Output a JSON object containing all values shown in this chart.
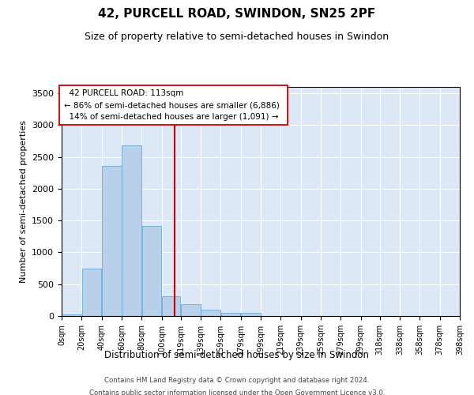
{
  "title": "42, PURCELL ROAD, SWINDON, SN25 2PF",
  "subtitle": "Size of property relative to semi-detached houses in Swindon",
  "xlabel": "Distribution of semi-detached houses by size in Swindon",
  "ylabel": "Number of semi-detached properties",
  "footer_line1": "Contains HM Land Registry data © Crown copyright and database right 2024.",
  "footer_line2": "Contains public sector information licensed under the Open Government Licence v3.0.",
  "property_size": 113,
  "annotation_title": "42 PURCELL ROAD: 113sqm",
  "annotation_line2": "← 86% of semi-detached houses are smaller (6,886)",
  "annotation_line3": "14% of semi-detached houses are larger (1,091) →",
  "bar_color": "#b8d0ea",
  "bar_edge_color": "#6aaad4",
  "vline_color": "#cc0000",
  "annotation_box_edge": "#cc0000",
  "plot_bg_color": "#dce8f5",
  "ylim_max": 3600,
  "yticks": [
    0,
    500,
    1000,
    1500,
    2000,
    2500,
    3000,
    3500
  ],
  "bin_edges": [
    0,
    20,
    40,
    60,
    80,
    100,
    119,
    139,
    159,
    179,
    199,
    219,
    239,
    259,
    279,
    299,
    318,
    338,
    358,
    378,
    398
  ],
  "bin_labels": [
    "0sqm",
    "20sqm",
    "40sqm",
    "60sqm",
    "80sqm",
    "100sqm",
    "119sqm",
    "139sqm",
    "159sqm",
    "179sqm",
    "199sqm",
    "219sqm",
    "239sqm",
    "259sqm",
    "279sqm",
    "299sqm",
    "318sqm",
    "338sqm",
    "358sqm",
    "378sqm",
    "398sqm"
  ],
  "bar_heights": [
    28,
    750,
    2360,
    2680,
    1410,
    310,
    185,
    105,
    50,
    50,
    0,
    0,
    0,
    0,
    0,
    0,
    0,
    0,
    0,
    0
  ]
}
